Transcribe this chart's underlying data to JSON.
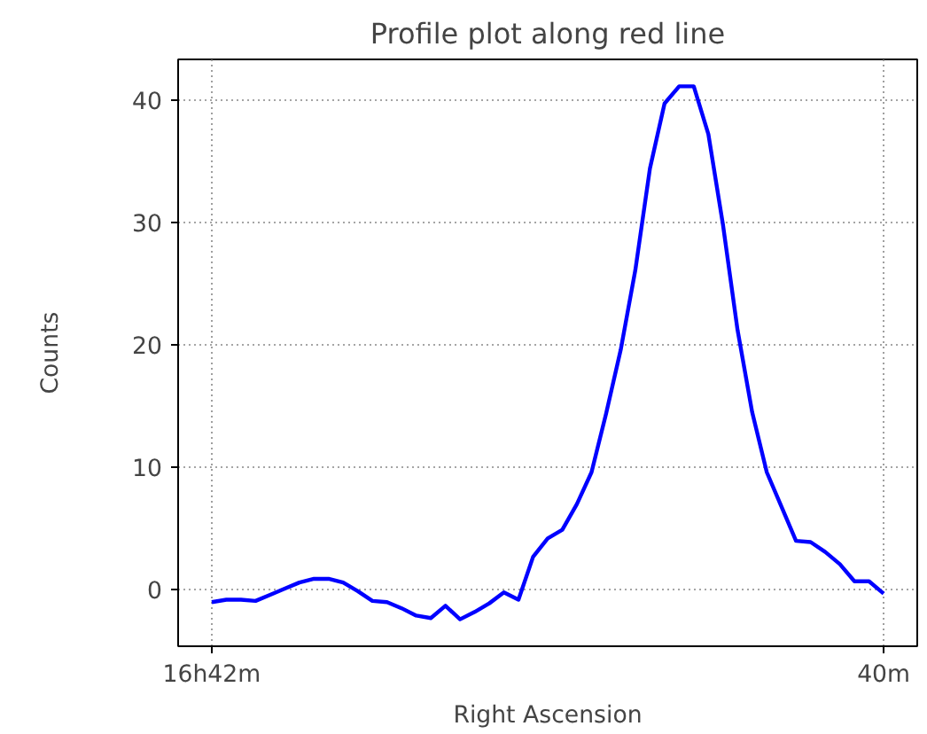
{
  "chart_data": {
    "type": "line",
    "title": "Profile plot along red line",
    "xlabel": "Right Ascension",
    "ylabel": "Counts",
    "categories": [
      "16h42m",
      null,
      null,
      null,
      null,
      null,
      null,
      null,
      null,
      null,
      null,
      null,
      null,
      null,
      null,
      null,
      null,
      null,
      null,
      null,
      null,
      null,
      null,
      null,
      null,
      null,
      null,
      null,
      null,
      null,
      null,
      null,
      null,
      null,
      null,
      null,
      null,
      null,
      null,
      null,
      null,
      null,
      null,
      null,
      null,
      null,
      "40m"
    ],
    "series": [
      {
        "color": "#0000ff",
        "values": [
          -1.0,
          -0.8,
          -0.8,
          -0.9,
          -0.4,
          0.1,
          0.6,
          0.9,
          0.9,
          0.6,
          -0.1,
          -0.9,
          -1.0,
          -1.5,
          -2.1,
          -2.3,
          -1.3,
          -2.4,
          -1.8,
          -1.1,
          -0.2,
          -0.8,
          2.7,
          4.2,
          4.9,
          7.0,
          9.6,
          14.4,
          19.6,
          26.1,
          34.4,
          39.7,
          41.1,
          41.1,
          37.2,
          29.8,
          21.2,
          14.5,
          9.6,
          6.8,
          4.0,
          3.9,
          3.1,
          2.1,
          0.7,
          0.7,
          -0.3
        ]
      }
    ],
    "ylim": [
      -4.6,
      43.3
    ],
    "yticks": [
      0,
      10,
      20,
      30,
      40
    ],
    "grid": true,
    "marker": "none",
    "line_style": "solid"
  }
}
